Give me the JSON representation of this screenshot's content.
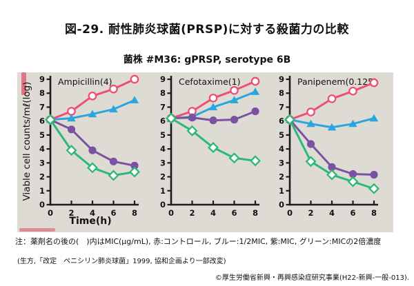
{
  "page": {
    "title": "図-29. 耐性肺炎球菌(PRSP)に対する殺菌力の比較",
    "subtitle": "菌株 #M36: gPRSP, serotype 6B",
    "note": "注：薬剤名の後の(　)内はMIC(μg/mL), 赤:コントロール, ブルー:1/2MIC, 紫:MIC, グリーン:MICの2倍濃度",
    "source": "(生方,「改定　ペニシリン肺炎球菌」1999, 協和企画より一部改変)",
    "copyright": "©厚生労働省新興・再興感染症研究事業(H22-新興-一般-013)."
  },
  "colors": {
    "control_red": "#ee4f74",
    "half_mic_blue": "#2ba6dc",
    "mic_purple": "#7a52a1",
    "double_mic_green": "#2cb876",
    "axis": "#1c1c1c",
    "panel_background": "#dedbd5"
  },
  "chart_data": [
    {
      "type": "line",
      "title": "Ampicillin(4)",
      "xlabel": "Time(h)",
      "ylabel": "Viable cell counts/mℓ(log)",
      "xlim": [
        0,
        8
      ],
      "ylim": [
        0,
        9
      ],
      "xticks": [
        0,
        2,
        4,
        6,
        8
      ],
      "yticks": [
        0,
        1,
        2,
        3,
        4,
        5,
        6,
        7,
        8,
        9
      ],
      "x": [
        0,
        2,
        4,
        6,
        8
      ],
      "series": [
        {
          "name": "コントロール",
          "color": "#ee4f74",
          "marker": "open-circle",
          "values": [
            6.1,
            6.7,
            7.8,
            8.3,
            9.0
          ]
        },
        {
          "name": "1/2MIC",
          "color": "#2ba6dc",
          "marker": "filled-triangle",
          "values": [
            6.1,
            6.2,
            6.5,
            6.85,
            7.5
          ]
        },
        {
          "name": "MIC",
          "color": "#7a52a1",
          "marker": "filled-circle",
          "values": [
            6.1,
            5.4,
            3.9,
            3.1,
            2.8
          ]
        },
        {
          "name": "MICの2倍濃度",
          "color": "#2cb876",
          "marker": "open-diamond",
          "values": [
            6.1,
            3.9,
            2.65,
            2.1,
            2.35
          ]
        }
      ]
    },
    {
      "type": "line",
      "title": "Cefotaxime(1)",
      "xlim": [
        0,
        8
      ],
      "ylim": [
        0,
        9
      ],
      "xticks": [
        0,
        2,
        4,
        6,
        8
      ],
      "yticks": [
        0,
        1,
        2,
        3,
        4,
        5,
        6,
        7,
        8,
        9
      ],
      "x": [
        0,
        2,
        4,
        6,
        8
      ],
      "series": [
        {
          "name": "コントロール",
          "color": "#ee4f74",
          "marker": "open-circle",
          "values": [
            6.2,
            6.7,
            7.65,
            8.2,
            8.85
          ]
        },
        {
          "name": "1/2MIC",
          "color": "#2ba6dc",
          "marker": "filled-triangle",
          "values": [
            6.2,
            6.3,
            7.0,
            7.5,
            8.1
          ]
        },
        {
          "name": "MIC",
          "color": "#7a52a1",
          "marker": "filled-circle",
          "values": [
            6.2,
            6.25,
            6.05,
            6.1,
            6.7
          ]
        },
        {
          "name": "MICの2倍濃度",
          "color": "#2cb876",
          "marker": "open-diamond",
          "values": [
            6.2,
            5.3,
            4.1,
            3.35,
            3.15
          ]
        }
      ]
    },
    {
      "type": "line",
      "title": "Panipenem(0.125)",
      "xlim": [
        0,
        8
      ],
      "ylim": [
        0,
        9
      ],
      "xticks": [
        0,
        2,
        4,
        6,
        8
      ],
      "yticks": [
        0,
        1,
        2,
        3,
        4,
        5,
        6,
        7,
        8,
        9
      ],
      "x": [
        0,
        2,
        4,
        6,
        8
      ],
      "series": [
        {
          "name": "コントロール",
          "color": "#ee4f74",
          "marker": "open-circle",
          "values": [
            6.1,
            6.65,
            7.6,
            8.15,
            8.75
          ]
        },
        {
          "name": "1/2MIC",
          "color": "#2ba6dc",
          "marker": "filled-triangle",
          "values": [
            6.1,
            5.8,
            5.55,
            5.8,
            6.2
          ]
        },
        {
          "name": "MIC",
          "color": "#7a52a1",
          "marker": "filled-circle",
          "values": [
            6.1,
            4.35,
            2.7,
            2.2,
            2.15
          ]
        },
        {
          "name": "MICの2倍濃度",
          "color": "#2cb876",
          "marker": "open-diamond",
          "values": [
            6.1,
            3.1,
            2.15,
            1.65,
            1.15
          ]
        }
      ]
    }
  ]
}
